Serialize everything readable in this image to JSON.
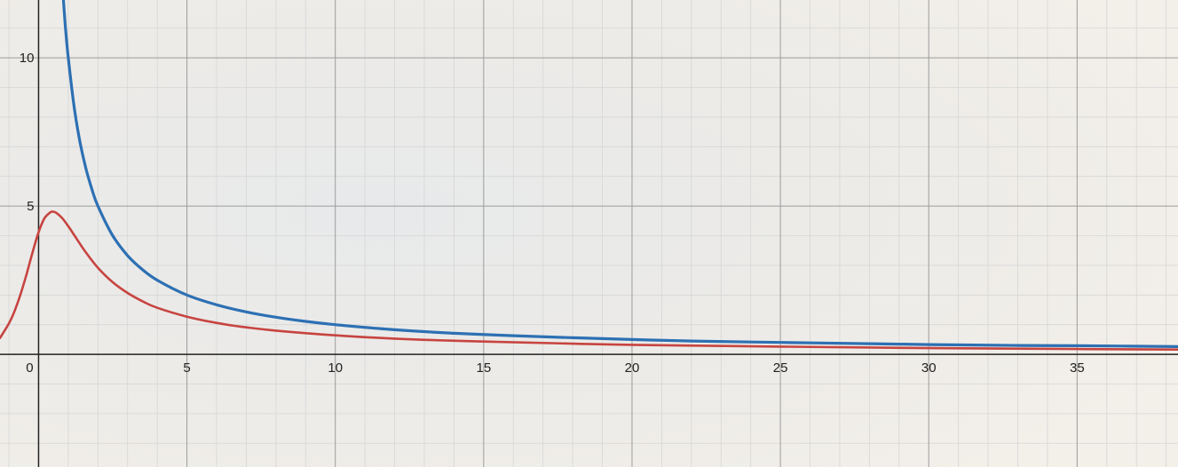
{
  "chart_data": {
    "type": "line",
    "title": "",
    "xlabel": "",
    "ylabel": "",
    "xlim": [
      -1.3,
      38.4
    ],
    "ylim": [
      -3.8,
      11.95
    ],
    "grid": true,
    "grid_minor_step": 1,
    "grid_major_step": 5,
    "x_ticks": [
      {
        "value": 0,
        "label": "0"
      },
      {
        "value": 5,
        "label": "5"
      },
      {
        "value": 10,
        "label": "10"
      },
      {
        "value": 15,
        "label": "15"
      },
      {
        "value": 20,
        "label": "20"
      },
      {
        "value": 25,
        "label": "25"
      },
      {
        "value": 30,
        "label": "30"
      },
      {
        "value": 35,
        "label": "35"
      }
    ],
    "y_ticks": [
      {
        "value": 5,
        "label": "5"
      },
      {
        "value": 10,
        "label": "10"
      }
    ],
    "series": [
      {
        "color": "#2d70b3",
        "x": [
          0.9,
          1.0,
          1.2,
          1.4,
          1.6,
          1.8,
          2.0,
          2.5,
          3.0,
          3.5,
          4.0,
          5.0,
          6.0,
          7.0,
          8.0,
          9.0,
          10.0,
          12.0,
          14.0,
          16.0,
          18.0,
          20.0,
          22.0,
          25.0,
          28.0,
          30.0,
          33.0,
          35.0,
          38.4
        ],
        "values": [
          11.1,
          10.0,
          8.33,
          7.14,
          6.25,
          5.56,
          5.0,
          4.0,
          3.33,
          2.86,
          2.5,
          2.0,
          1.67,
          1.43,
          1.25,
          1.11,
          1.0,
          0.83,
          0.71,
          0.63,
          0.56,
          0.5,
          0.45,
          0.4,
          0.36,
          0.33,
          0.3,
          0.29,
          0.26
        ]
      },
      {
        "color": "#c74440",
        "x": [
          -1.3,
          -1.0,
          -0.8,
          -0.6,
          -0.4,
          -0.2,
          0.0,
          0.2,
          0.4,
          0.5,
          0.6,
          0.8,
          1.0,
          1.3,
          1.6,
          2.0,
          2.5,
          3.0,
          3.5,
          4.0,
          5.0,
          6.0,
          7.0,
          8.0,
          10.0,
          12.0,
          15.0,
          20.0,
          25.0,
          30.0,
          35.0,
          38.4
        ],
        "values": [
          0.55,
          1.04,
          1.48,
          2.05,
          2.72,
          3.45,
          4.12,
          4.59,
          4.79,
          4.81,
          4.77,
          4.59,
          4.32,
          3.87,
          3.43,
          2.92,
          2.43,
          2.07,
          1.79,
          1.57,
          1.27,
          1.06,
          0.91,
          0.8,
          0.64,
          0.53,
          0.43,
          0.32,
          0.26,
          0.21,
          0.18,
          0.16
        ]
      }
    ]
  },
  "colors": {
    "background": "#f1eee8",
    "minor_grid": "#d6d6d6",
    "major_grid": "#9c9c9c",
    "axis": "#222222"
  }
}
